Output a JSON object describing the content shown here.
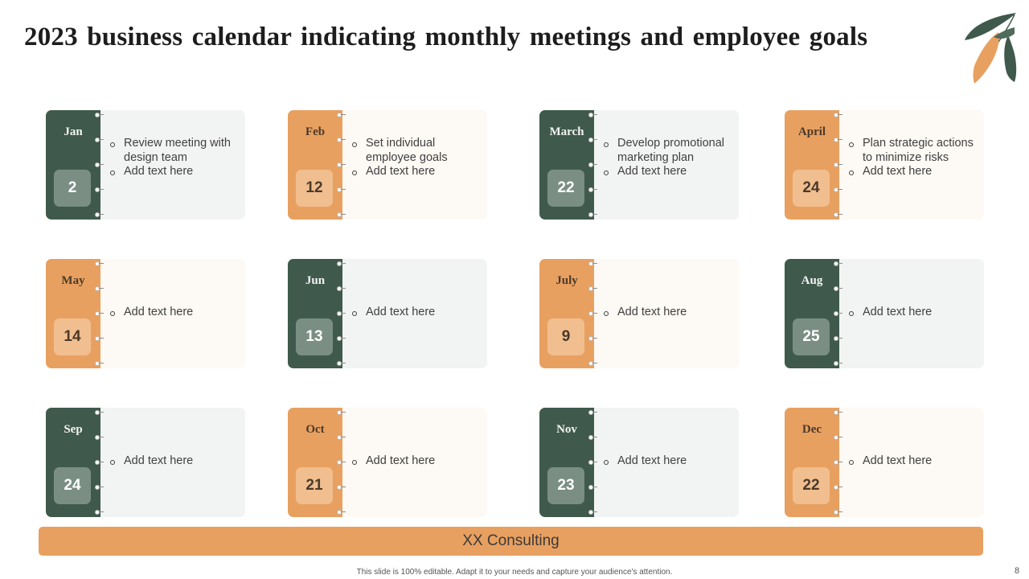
{
  "title": "2023 business calendar indicating monthly meetings and employee goals",
  "colors": {
    "green": "#3f5a4c",
    "orange": "#e8a060"
  },
  "months": [
    {
      "month": "Jan",
      "day": "2",
      "theme": "green",
      "items": [
        "Review meeting with design team",
        "Add text here"
      ]
    },
    {
      "month": "Feb",
      "day": "12",
      "theme": "orange",
      "items": [
        "Set individual employee goals",
        "Add text here"
      ]
    },
    {
      "month": "March",
      "day": "22",
      "theme": "green",
      "items": [
        "Develop promotional marketing plan",
        "Add text here"
      ]
    },
    {
      "month": "April",
      "day": "24",
      "theme": "orange",
      "items": [
        "Plan strategic actions to minimize risks",
        "Add text here"
      ]
    },
    {
      "month": "May",
      "day": "14",
      "theme": "orange",
      "items": [
        "Add text here"
      ]
    },
    {
      "month": "Jun",
      "day": "13",
      "theme": "green",
      "items": [
        "Add text here"
      ]
    },
    {
      "month": "July",
      "day": "9",
      "theme": "orange",
      "items": [
        "Add text here"
      ]
    },
    {
      "month": "Aug",
      "day": "25",
      "theme": "green",
      "items": [
        "Add text here"
      ]
    },
    {
      "month": "Sep",
      "day": "24",
      "theme": "green",
      "items": [
        "Add text here"
      ]
    },
    {
      "month": "Oct",
      "day": "21",
      "theme": "orange",
      "items": [
        "Add text here"
      ]
    },
    {
      "month": "Nov",
      "day": "23",
      "theme": "green",
      "items": [
        "Add text here"
      ]
    },
    {
      "month": "Dec",
      "day": "22",
      "theme": "orange",
      "items": [
        "Add text here"
      ]
    }
  ],
  "footer": {
    "bar_text": "XX Consulting"
  },
  "caption": "This slide is 100% editable. Adapt it to your needs and capture your audience's attention.",
  "page_number": "8",
  "icons": {
    "decoration": "leaves-icon"
  }
}
